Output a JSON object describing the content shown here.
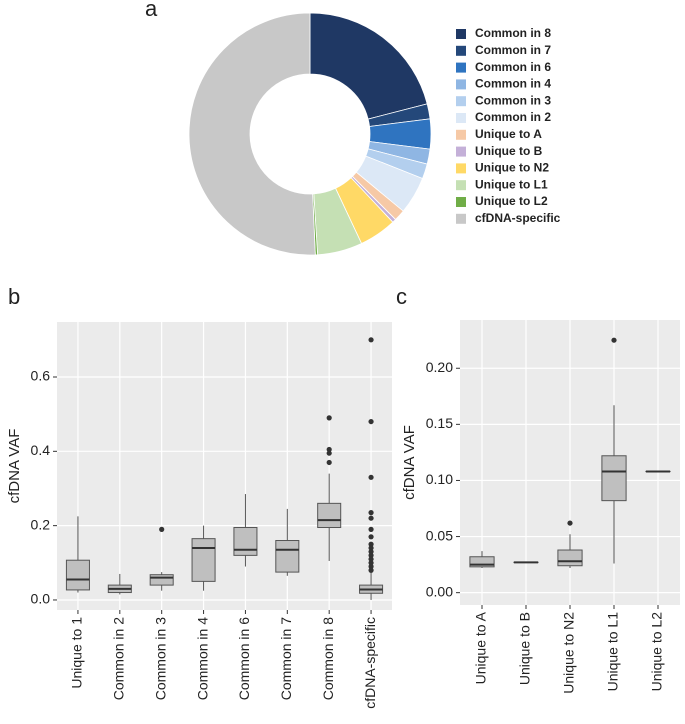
{
  "chart_data": [
    {
      "type": "pie",
      "panel": "a",
      "categories": [
        "Common in 8",
        "Common in 7",
        "Common in 6",
        "Common in 4",
        "Common in 3",
        "Common in 2",
        "Unique to A",
        "Unique to B",
        "Unique to N2",
        "Unique to L1",
        "Unique to L2",
        "cfDNA-specific"
      ],
      "values": [
        21,
        2,
        4,
        2,
        2,
        5,
        1.5,
        0.5,
        5,
        6,
        0.3,
        50.7
      ],
      "colors": [
        "#1f3864",
        "#24487a",
        "#2f74c0",
        "#8fb6e3",
        "#b3cfee",
        "#dce8f6",
        "#f6c9a6",
        "#c4b0d8",
        "#ffd966",
        "#c5e0b4",
        "#70ad47",
        "#c8c8c8"
      ]
    },
    {
      "type": "box",
      "panel": "b",
      "ylabel": "cfDNA VAF",
      "categories": [
        "Unique to 1",
        "Common in 2",
        "Common in 3",
        "Common in 4",
        "Common in 6",
        "Common in 7",
        "Common in 8",
        "cfDNA-specific"
      ],
      "boxes": [
        {
          "min": 0.02,
          "q1": 0.027,
          "median": 0.055,
          "q3": 0.107,
          "max": 0.225,
          "outliers": []
        },
        {
          "min": 0.015,
          "q1": 0.02,
          "median": 0.03,
          "q3": 0.04,
          "max": 0.07,
          "outliers": []
        },
        {
          "min": 0.025,
          "q1": 0.04,
          "median": 0.06,
          "q3": 0.068,
          "max": 0.075,
          "outliers": [
            0.19
          ]
        },
        {
          "min": 0.025,
          "q1": 0.05,
          "median": 0.14,
          "q3": 0.165,
          "max": 0.2,
          "outliers": []
        },
        {
          "min": 0.09,
          "q1": 0.12,
          "median": 0.135,
          "q3": 0.195,
          "max": 0.285,
          "outliers": []
        },
        {
          "min": 0.065,
          "q1": 0.075,
          "median": 0.135,
          "q3": 0.16,
          "max": 0.245,
          "outliers": []
        },
        {
          "min": 0.105,
          "q1": 0.195,
          "median": 0.215,
          "q3": 0.26,
          "max": 0.34,
          "outliers": [
            0.49,
            0.405,
            0.395,
            0.37
          ]
        },
        {
          "min": 0,
          "q1": 0.018,
          "median": 0.028,
          "q3": 0.04,
          "max": 0.075,
          "outliers": [
            0.7,
            0.48,
            0.33,
            0.235,
            0.22,
            0.19,
            0.17,
            0.15,
            0.14,
            0.13,
            0.12,
            0.11,
            0.1,
            0.09,
            0.08
          ]
        }
      ],
      "color": "#bfbfbf",
      "ylim": [
        -0.027,
        0.748
      ],
      "yticks": [
        {
          "value": 0,
          "label": "0.0"
        },
        {
          "value": 0.2,
          "label": "0.2"
        },
        {
          "value": 0.4,
          "label": "0.4"
        },
        {
          "value": 0.6,
          "label": "0.6"
        }
      ],
      "grid": true
    },
    {
      "type": "box",
      "panel": "c",
      "ylabel": "cfDNA VAF",
      "categories": [
        "Unique to A",
        "Unique to B",
        "Unique to N2",
        "Unique to L1",
        "Unique to L2"
      ],
      "boxes": [
        {
          "min": 0.022,
          "q1": 0.023,
          "median": 0.025,
          "q3": 0.032,
          "max": 0.037,
          "outliers": []
        },
        {
          "min": 0.027,
          "q1": 0.027,
          "median": 0.027,
          "q3": 0.027,
          "max": 0.027,
          "outliers": []
        },
        {
          "min": 0.022,
          "q1": 0.024,
          "median": 0.028,
          "q3": 0.038,
          "max": 0.052,
          "outliers": [
            0.062
          ]
        },
        {
          "min": 0.026,
          "q1": 0.082,
          "median": 0.108,
          "q3": 0.122,
          "max": 0.167,
          "outliers": [
            0.225
          ]
        },
        {
          "min": 0.108,
          "q1": 0.108,
          "median": 0.108,
          "q3": 0.108,
          "max": 0.108,
          "outliers": []
        }
      ],
      "color": "#bfbfbf",
      "ylim": [
        -0.011,
        0.243
      ],
      "yticks": [
        {
          "value": 0,
          "label": "0.00"
        },
        {
          "value": 0.05,
          "label": "0.05"
        },
        {
          "value": 0.1,
          "label": "0.10"
        },
        {
          "value": 0.15,
          "label": "0.15"
        },
        {
          "value": 0.2,
          "label": "0.20"
        }
      ],
      "grid": true
    }
  ]
}
